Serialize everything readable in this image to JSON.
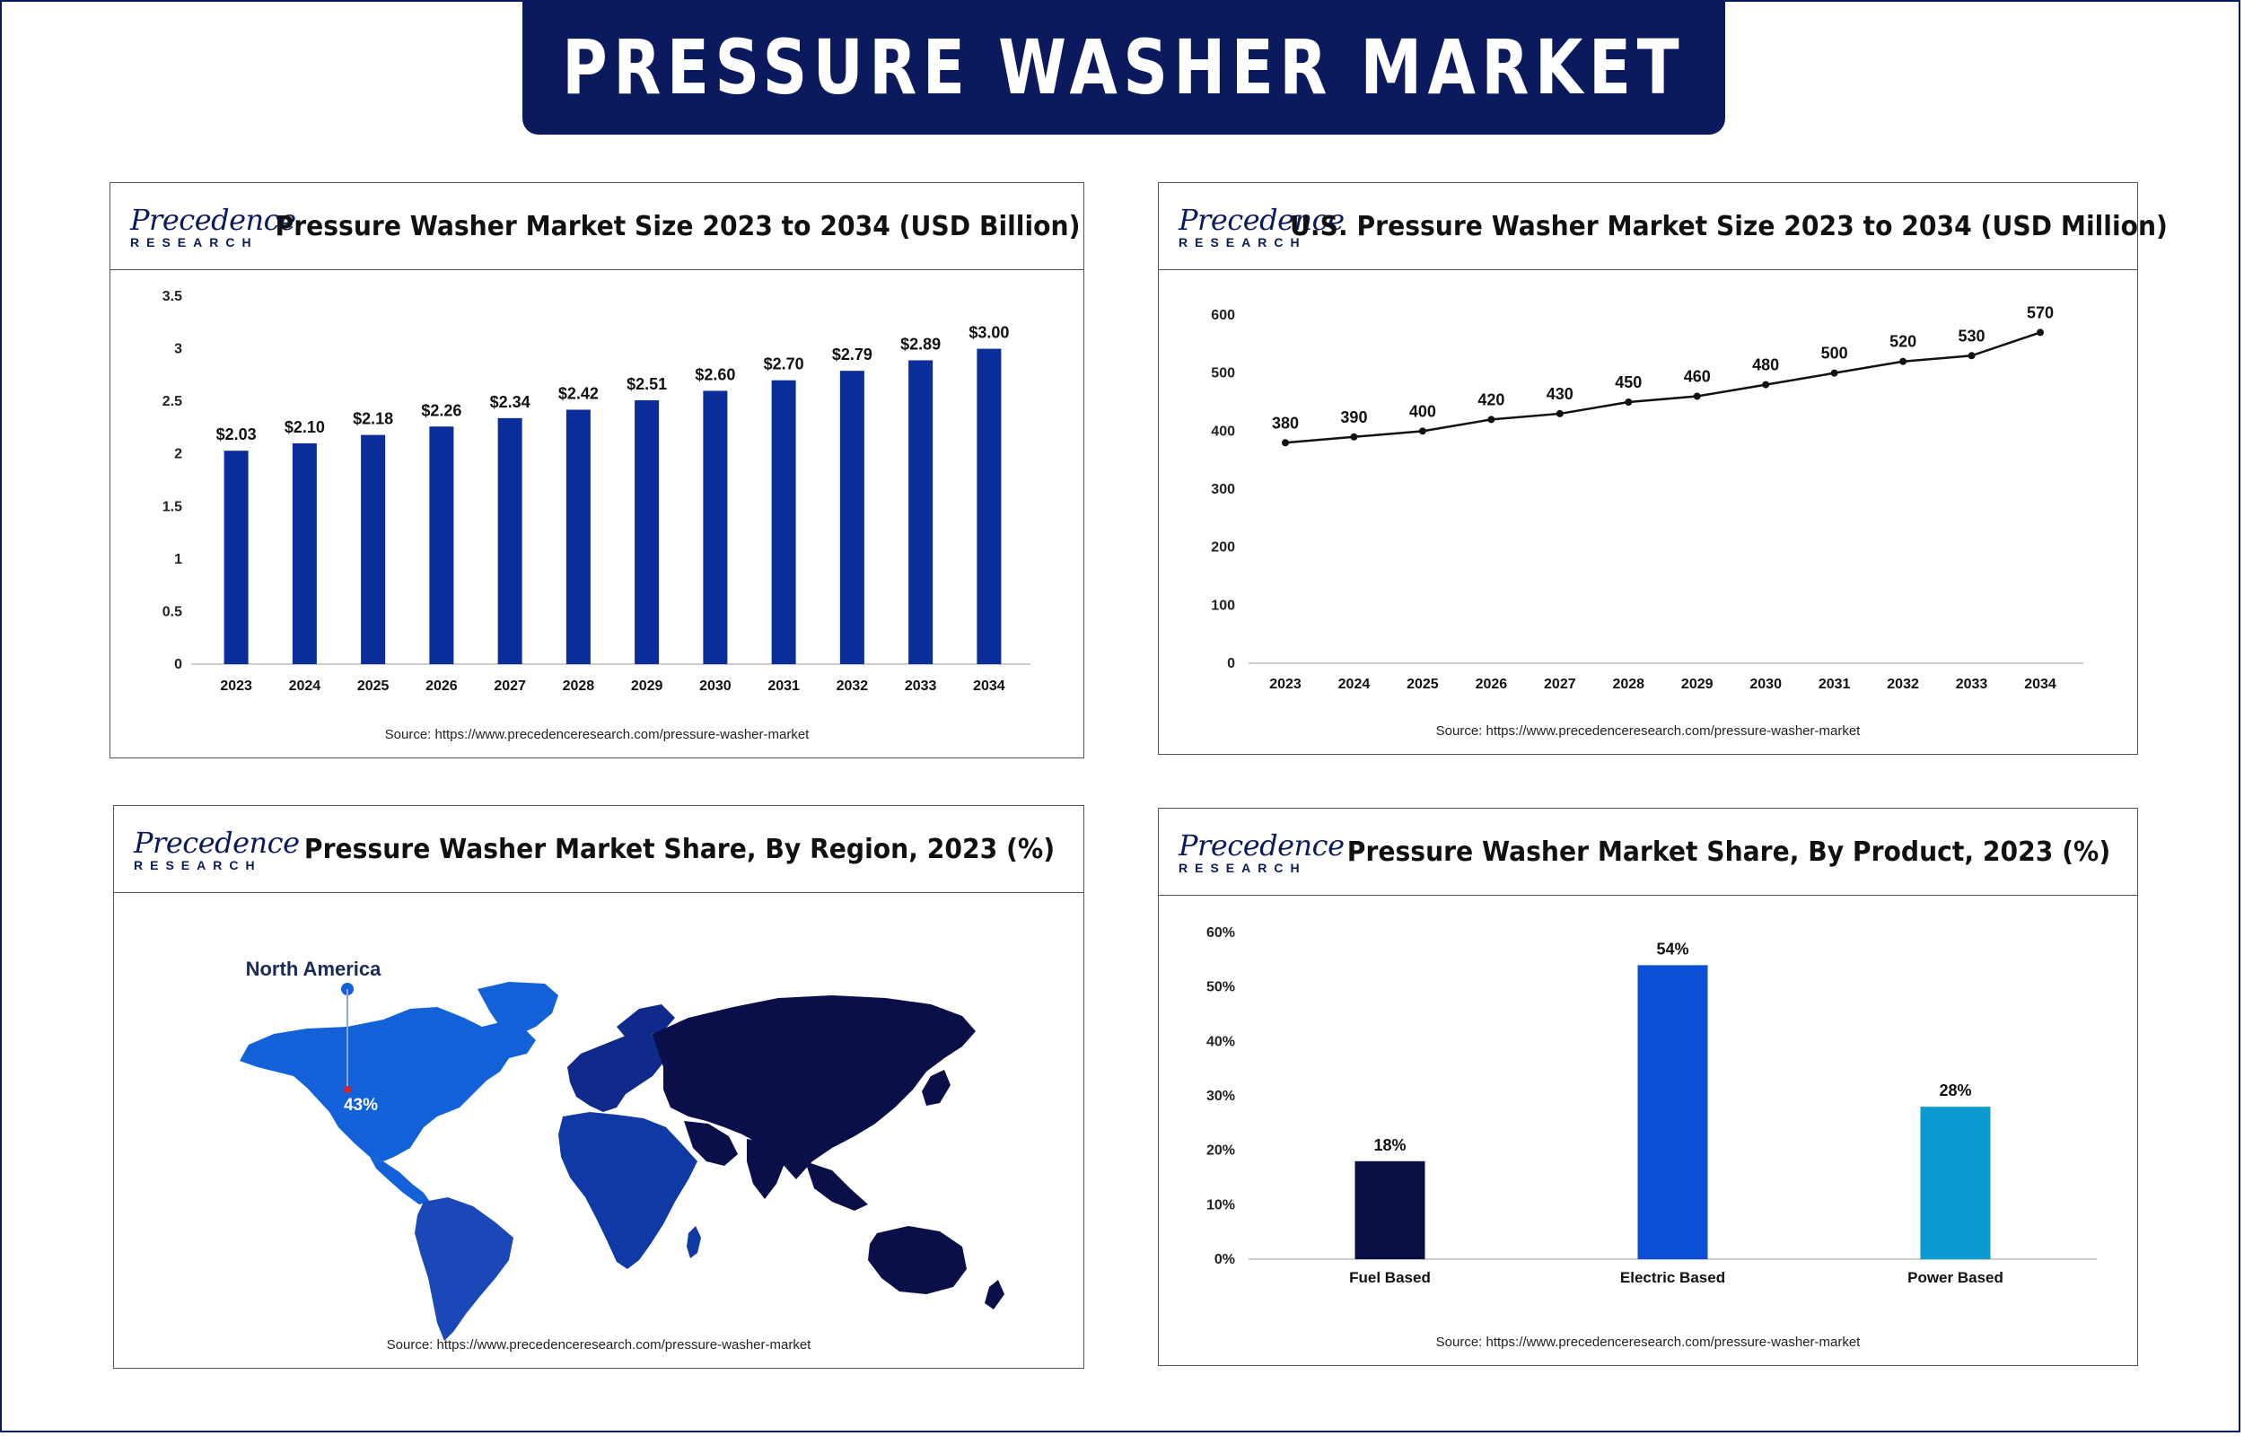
{
  "banner": {
    "title": "PRESSURE WASHER MARKET"
  },
  "logo": {
    "top": "Precedence",
    "bottom": "RESEARCH"
  },
  "source_text": "Source: https://www.precedenceresearch.com/pressure-washer-market",
  "colors": {
    "navy": "#0b1a5c",
    "bar_blue": "#0a2d9a",
    "electric_blue": "#0b4fd6",
    "power_cyan": "#0a9bd0",
    "fuel_navy": "#0a0f45",
    "map_na": "#1261d8",
    "map_sa": "#1a48b8",
    "map_africa": "#0f3aa6",
    "map_europe": "#102a8c",
    "map_asia": "#0a0f4a",
    "map_pin": "#e02020"
  },
  "chart_data": [
    {
      "id": "market-size",
      "type": "bar",
      "title": "Pressure Washer Market Size 2023 to 2034 (USD Billion)",
      "categories": [
        "2023",
        "2024",
        "2025",
        "2026",
        "2027",
        "2028",
        "2029",
        "2030",
        "2031",
        "2032",
        "2033",
        "2034"
      ],
      "values": [
        2.03,
        2.1,
        2.18,
        2.26,
        2.34,
        2.42,
        2.51,
        2.6,
        2.7,
        2.79,
        2.89,
        3.0
      ],
      "labels": [
        "$2.03",
        "$2.10",
        "$2.18",
        "$2.26",
        "$2.34",
        "$2.42",
        "$2.51",
        "$2.60",
        "$2.70",
        "$2.79",
        "$2.89",
        "$3.00"
      ],
      "yticks": [
        "0",
        "0.5",
        "1",
        "1.5",
        "2",
        "2.5",
        "3",
        "3.5"
      ],
      "ylim": [
        0,
        3.5
      ],
      "xlabel": "",
      "ylabel": "",
      "grid": false
    },
    {
      "id": "us-market-size",
      "type": "line",
      "title": "U.S. Pressure Washer Market Size 2023 to 2034 (USD Million)",
      "categories": [
        "2023",
        "2024",
        "2025",
        "2026",
        "2027",
        "2028",
        "2029",
        "2030",
        "2031",
        "2032",
        "2033",
        "2034"
      ],
      "values": [
        380,
        390,
        400,
        420,
        430,
        450,
        460,
        480,
        500,
        520,
        530,
        570
      ],
      "labels": [
        "380",
        "390",
        "400",
        "420",
        "430",
        "450",
        "460",
        "480",
        "500",
        "520",
        "530",
        "570"
      ],
      "yticks": [
        "0",
        "100",
        "200",
        "300",
        "400",
        "500",
        "600"
      ],
      "ylim": [
        0,
        600
      ],
      "xlabel": "",
      "ylabel": "",
      "grid": false
    },
    {
      "id": "region-share",
      "type": "other",
      "title": "Pressure Washer Market Share, By Region, 2023 (%)",
      "regions": [
        {
          "name": "North America",
          "value": 43,
          "label": "43%"
        }
      ]
    },
    {
      "id": "product-share",
      "type": "bar",
      "title": "Pressure Washer Market Share, By Product, 2023 (%)",
      "categories": [
        "Fuel Based",
        "Electric Based",
        "Power Based"
      ],
      "values": [
        18,
        54,
        28
      ],
      "labels": [
        "18%",
        "54%",
        "28%"
      ],
      "yticks": [
        "0%",
        "10%",
        "20%",
        "30%",
        "40%",
        "50%",
        "60%"
      ],
      "ylim": [
        0,
        60
      ],
      "xlabel": "",
      "ylabel": "",
      "grid": false
    }
  ]
}
